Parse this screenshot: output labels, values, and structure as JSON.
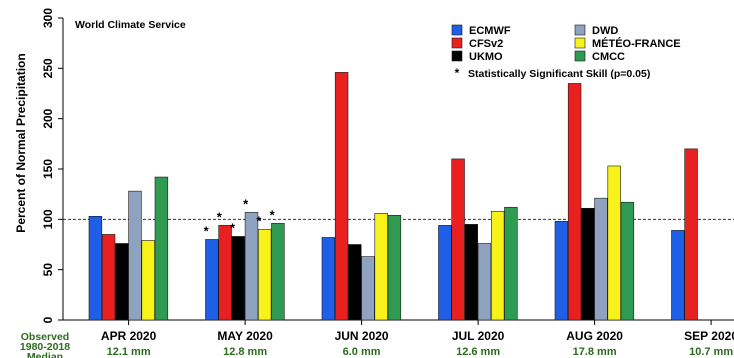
{
  "chart_data": {
    "type": "bar",
    "title": "",
    "watermark": "World Climate Service",
    "ylabel": "Percent of Normal Precipitation",
    "xlabel": "",
    "ylim": [
      0,
      300
    ],
    "yticks": [
      0,
      50,
      100,
      150,
      200,
      250,
      300
    ],
    "reference_line": 100,
    "categories": [
      "APR 2020",
      "MAY 2020",
      "JUN 2020",
      "JUL 2020",
      "AUG 2020",
      "SEP 2020"
    ],
    "series": [
      {
        "name": "ECMWF",
        "color": "#1f5fe8",
        "values": [
          103,
          80,
          82,
          94,
          98,
          89
        ]
      },
      {
        "name": "CFSv2",
        "color": "#e8201f",
        "values": [
          85,
          94,
          246,
          160,
          235,
          170
        ]
      },
      {
        "name": "UKMO",
        "color": "#000000",
        "values": [
          76,
          83,
          75,
          95,
          111,
          null
        ]
      },
      {
        "name": "DWD",
        "color": "#8fa3c0",
        "values": [
          128,
          107,
          63,
          76,
          121,
          null
        ]
      },
      {
        "name": "MÉTÉO-FRANCE",
        "color": "#f6f21a",
        "values": [
          79,
          90,
          106,
          108,
          153,
          null
        ]
      },
      {
        "name": "CMCC",
        "color": "#2e9a52",
        "values": [
          142,
          96,
          104,
          112,
          117,
          null
        ]
      }
    ],
    "significance_note": "Statistically Significant Skill (p=0.05)",
    "significant": {
      "MAY 2020": [
        "ECMWF",
        "CFSv2",
        "UKMO",
        "DWD",
        "MÉTÉO-FRANCE",
        "CMCC"
      ]
    },
    "observed_label": [
      "Observed",
      "1980-2018",
      "Median"
    ],
    "observed_values": [
      "12.1 mm",
      "12.8 mm",
      "6.0 mm",
      "12.6 mm",
      "17.8 mm",
      "10.7 mm"
    ],
    "legend_position": "top-right",
    "grid": false
  }
}
